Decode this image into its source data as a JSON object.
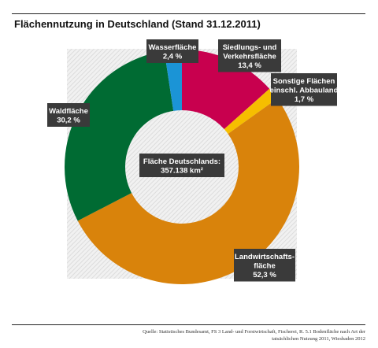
{
  "title": "Flächennutzung in Deutschland (Stand 31.12.2011)",
  "source_lines": [
    "Quelle: Statistisches Bundesamt, FS 3 Land- und Forstwirtschaft, Fischerei, R. 5.1 Bodenfläche nach Art der",
    "tatsächlichen Nutzung 2011, Wiesbaden 2012"
  ],
  "chart_data": {
    "type": "pie",
    "donut": true,
    "title": "Flächennutzung in Deutschland (Stand 31.12.2011)",
    "center_label": [
      "Fläche Deutschlands:",
      "357.138 km²"
    ],
    "slices": [
      {
        "label": [
          "Siedlungs- und",
          "Verkehrsfläche"
        ],
        "value": 13.4,
        "value_label": "13,4 %",
        "color": "#c8004e"
      },
      {
        "label": [
          "Sonstige Flächen",
          "einschl. Abbauland"
        ],
        "value": 1.7,
        "value_label": "1,7 %",
        "color": "#f6be00"
      },
      {
        "label": [
          "Landwirtschafts-",
          "fläche"
        ],
        "value": 52.3,
        "value_label": "52,3 %",
        "color": "#d9830b"
      },
      {
        "label": [
          "Waldfläche"
        ],
        "value": 30.2,
        "value_label": "30,2 %",
        "color": "#006b33"
      },
      {
        "label": [
          "Wasserfläche"
        ],
        "value": 2.4,
        "value_label": "2,4 %",
        "color": "#1b94d6"
      }
    ],
    "label_box_color": "#3a3a3a",
    "background_pattern": "hatched-grey"
  }
}
